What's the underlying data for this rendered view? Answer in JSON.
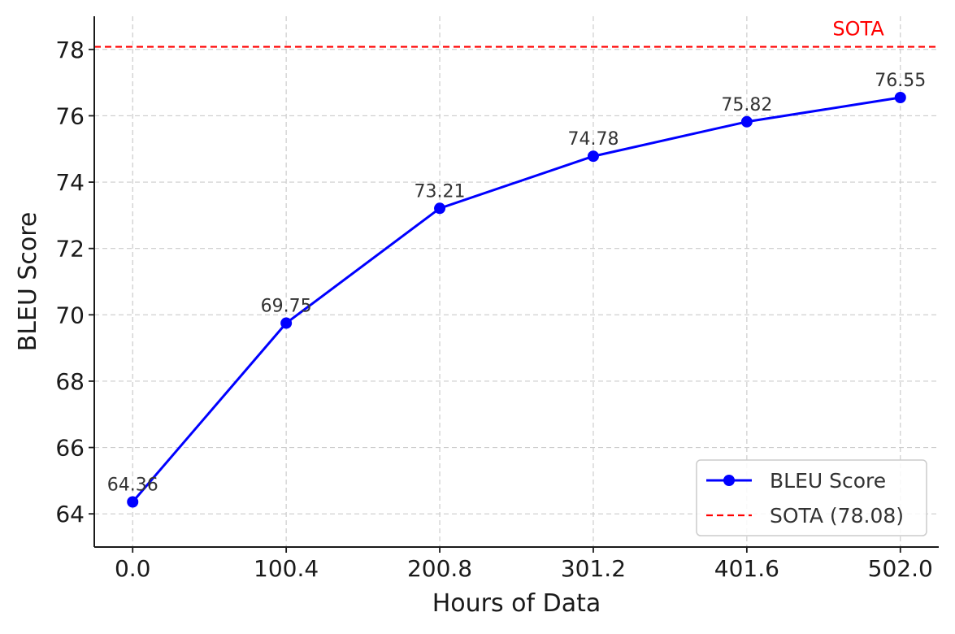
{
  "chart_data": {
    "type": "line",
    "xlabel": "Hours of Data",
    "ylabel": "BLEU Score",
    "x": [
      0.0,
      100.4,
      200.8,
      301.2,
      401.6,
      502.0
    ],
    "x_tick_labels": [
      "0.0",
      "100.4",
      "200.8",
      "301.2",
      "401.6",
      "502.0"
    ],
    "xlim": [
      -25.1,
      527.1
    ],
    "ylim": [
      63.0,
      79.0
    ],
    "y_ticks": [
      64,
      66,
      68,
      70,
      72,
      74,
      76,
      78
    ],
    "y_tick_labels": [
      "64",
      "66",
      "68",
      "70",
      "72",
      "74",
      "76",
      "78"
    ],
    "grid": true,
    "series": [
      {
        "name": "BLEU Score",
        "color": "#0000ff",
        "marker": "circle",
        "values": [
          64.36,
          69.75,
          73.21,
          74.78,
          75.82,
          76.55
        ],
        "data_labels": [
          "64.36",
          "69.75",
          "73.21",
          "74.78",
          "75.82",
          "76.55"
        ]
      }
    ],
    "reference_line": {
      "name": "SOTA (78.08)",
      "value": 78.08,
      "color": "#ff0000",
      "style": "dashed",
      "annotation": "SOTA"
    },
    "legend": {
      "position": "lower-right",
      "entries": [
        "BLEU Score",
        "SOTA (78.08)"
      ]
    }
  }
}
